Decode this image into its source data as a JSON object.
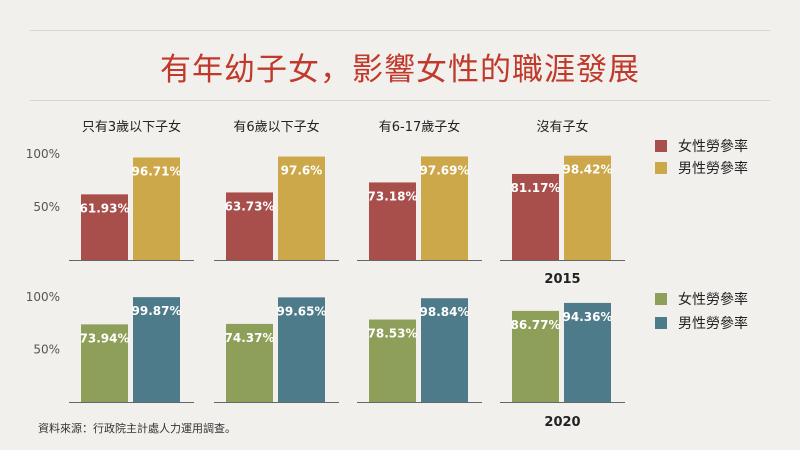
{
  "title": "有年幼子女，影響女性的職涯發展",
  "source": "資料來源：行政院主計處人力運用調查。",
  "colors": {
    "female_2015": "#a84e4b",
    "male_2015": "#cda84a",
    "female_2020": "#8d9f58",
    "male_2020": "#4e7b8a",
    "bar_label": "#ffffff",
    "axis": "#555555"
  },
  "chart_data": [
    {
      "type": "bar",
      "title": "",
      "year_label": "2015",
      "categories": [
        "只有3歲以下子女",
        "有6歲以下子女",
        "有6-17歲子女",
        "沒有子女"
      ],
      "series": [
        {
          "name": "女性勞參率",
          "values": [
            61.93,
            63.73,
            73.18,
            81.17
          ],
          "labels": [
            "61.93%",
            "63.73%",
            "73.18%",
            "81.17%"
          ]
        },
        {
          "name": "男性勞參率",
          "values": [
            96.71,
            97.6,
            97.69,
            98.42
          ],
          "labels": [
            "96.71%",
            "97.6%",
            "97.69%",
            "98.42%"
          ]
        }
      ],
      "yticks": [
        "100%",
        "50%"
      ],
      "ytick_values": [
        100,
        50
      ],
      "ylim": [
        0,
        100
      ],
      "legend": "right",
      "grid": false
    },
    {
      "type": "bar",
      "title": "",
      "year_label": "2020",
      "categories": [
        "只有3歲以下子女",
        "有6歲以下子女",
        "有6-17歲子女",
        "沒有子女"
      ],
      "series": [
        {
          "name": "女性勞參率",
          "values": [
            73.94,
            74.37,
            78.53,
            86.77
          ],
          "labels": [
            "73.94%",
            "74.37%",
            "78.53%",
            "86.77%"
          ]
        },
        {
          "name": "男性勞參率",
          "values": [
            99.87,
            99.65,
            98.84,
            94.36
          ],
          "labels": [
            "99.87%",
            "99.65%",
            "98.84%",
            "94.36%"
          ]
        }
      ],
      "yticks": [
        "100%",
        "50%"
      ],
      "ytick_values": [
        100,
        50
      ],
      "ylim": [
        0,
        100
      ],
      "legend": "right",
      "grid": false
    }
  ]
}
